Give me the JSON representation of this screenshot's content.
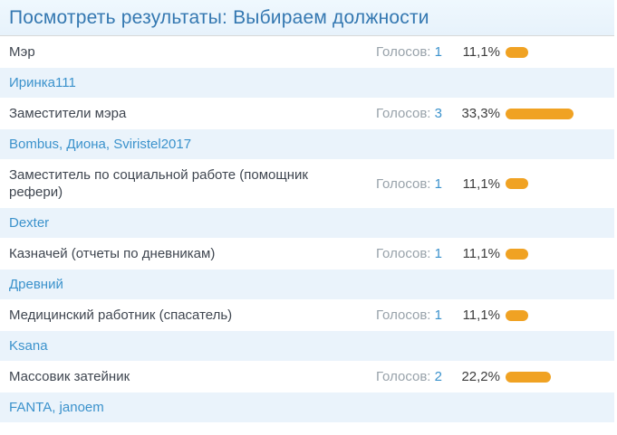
{
  "header": {
    "title": "Посмотреть результаты: Выбираем должности"
  },
  "labels": {
    "votes_word": "Голосов:"
  },
  "colors": {
    "title_blue": "#3478b1",
    "link_blue": "#3b92cc",
    "votes_gray": "#98a2aa",
    "option_text": "#3f4650",
    "percent_text": "#3c3c3c",
    "bar_orange": "#f0a223",
    "voter_row_bg": "#eaf3fb"
  },
  "poll": {
    "options": [
      {
        "label": "Мэр",
        "votes": "1",
        "percent_label": "11,1%",
        "percent": 11.1,
        "voters": "Иринка111"
      },
      {
        "label": "Заместители мэра",
        "votes": "3",
        "percent_label": "33,3%",
        "percent": 33.3,
        "voters": "Bombus, Диона, Sviristel2017"
      },
      {
        "label": "Заместитель по социальной работе (помощник рефери)",
        "votes": "1",
        "percent_label": "11,1%",
        "percent": 11.1,
        "voters": "Dexter"
      },
      {
        "label": "Казначей (отчеты по дневникам)",
        "votes": "1",
        "percent_label": "11,1%",
        "percent": 11.1,
        "voters": "Древний"
      },
      {
        "label": "Медицинский работник (спасатель)",
        "votes": "1",
        "percent_label": "11,1%",
        "percent": 11.1,
        "voters": "Ksana"
      },
      {
        "label": "Массовик затейник",
        "votes": "2",
        "percent_label": "22,2%",
        "percent": 22.2,
        "voters": "FANTA, janoem"
      }
    ]
  }
}
